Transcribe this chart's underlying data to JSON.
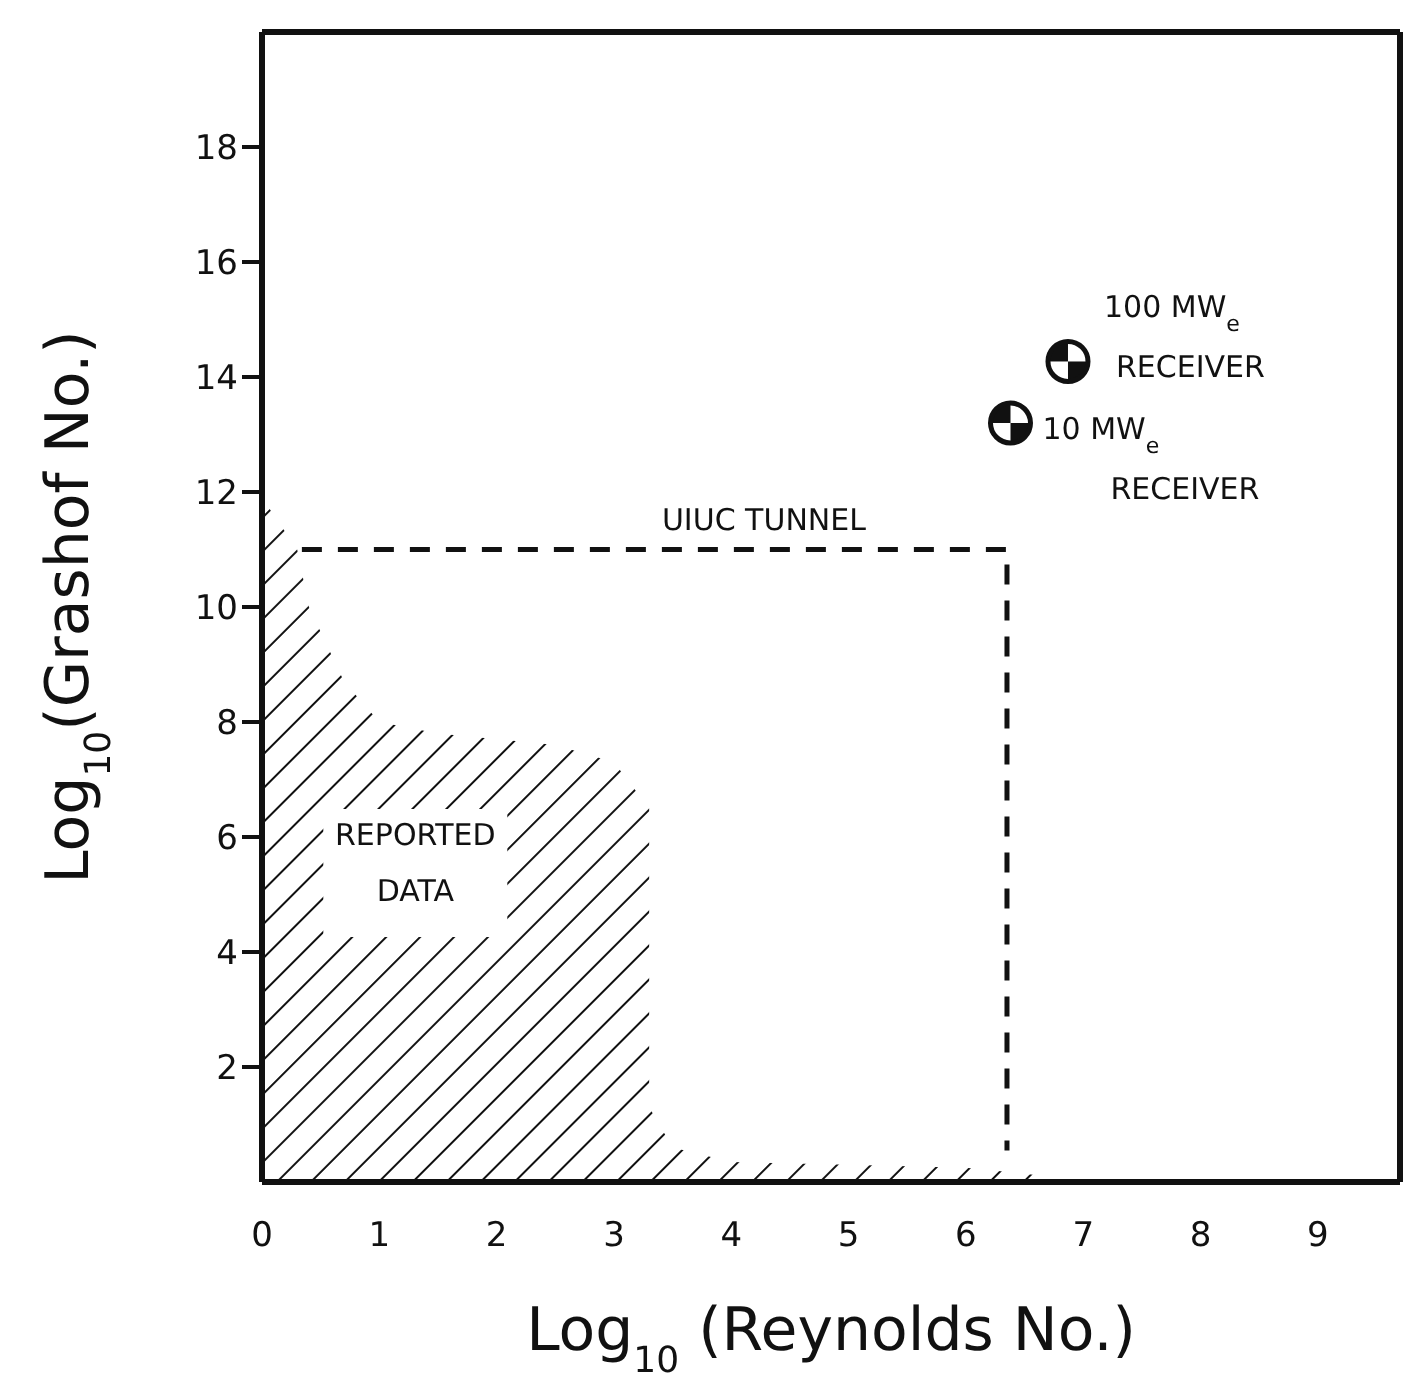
{
  "chart_data": {
    "type": "scatter",
    "xlabel": "Log$_{10}$ (Reynolds No.)",
    "ylabel": "Log$_{10}$(Grashof No.)",
    "xlim": [
      0,
      9.7
    ],
    "ylim": [
      0,
      20
    ],
    "xticks": [
      0,
      1,
      2,
      3,
      4,
      5,
      6,
      7,
      8,
      9
    ],
    "yticks": [
      2,
      4,
      6,
      8,
      10,
      12,
      14,
      16,
      18
    ],
    "series": [
      {
        "type": "area",
        "name": "REPORTED DATA",
        "color": "#111111",
        "x": [
          0,
          0.3,
          0.4,
          0.7,
          1,
          1.5,
          2.5,
          3,
          3.3,
          3.3,
          3.5,
          4,
          5,
          6,
          6.7
        ],
        "values": [
          11.9,
          11,
          10,
          8.7,
          8,
          7.8,
          7.6,
          7.3,
          6.5,
          1.3,
          0.6,
          0.35,
          0.3,
          0.25,
          0.1
        ]
      },
      {
        "type": "line",
        "name": "UIUC TUNNEL",
        "line_style": "dashed",
        "color": "#111111",
        "x": [
          0.34,
          6.35,
          6.35
        ],
        "values": [
          11,
          11,
          0.55
        ]
      },
      {
        "name": "10 MW$_{e}$ RECEIVER",
        "marker": "circle",
        "color": "#111111",
        "x": [
          6.38
        ],
        "values": [
          13.2
        ]
      },
      {
        "name": "100 MW$_{e}$ RECEIVER",
        "marker": "circle",
        "color": "#111111",
        "x": [
          6.87
        ],
        "values": [
          14.27
        ]
      }
    ]
  }
}
